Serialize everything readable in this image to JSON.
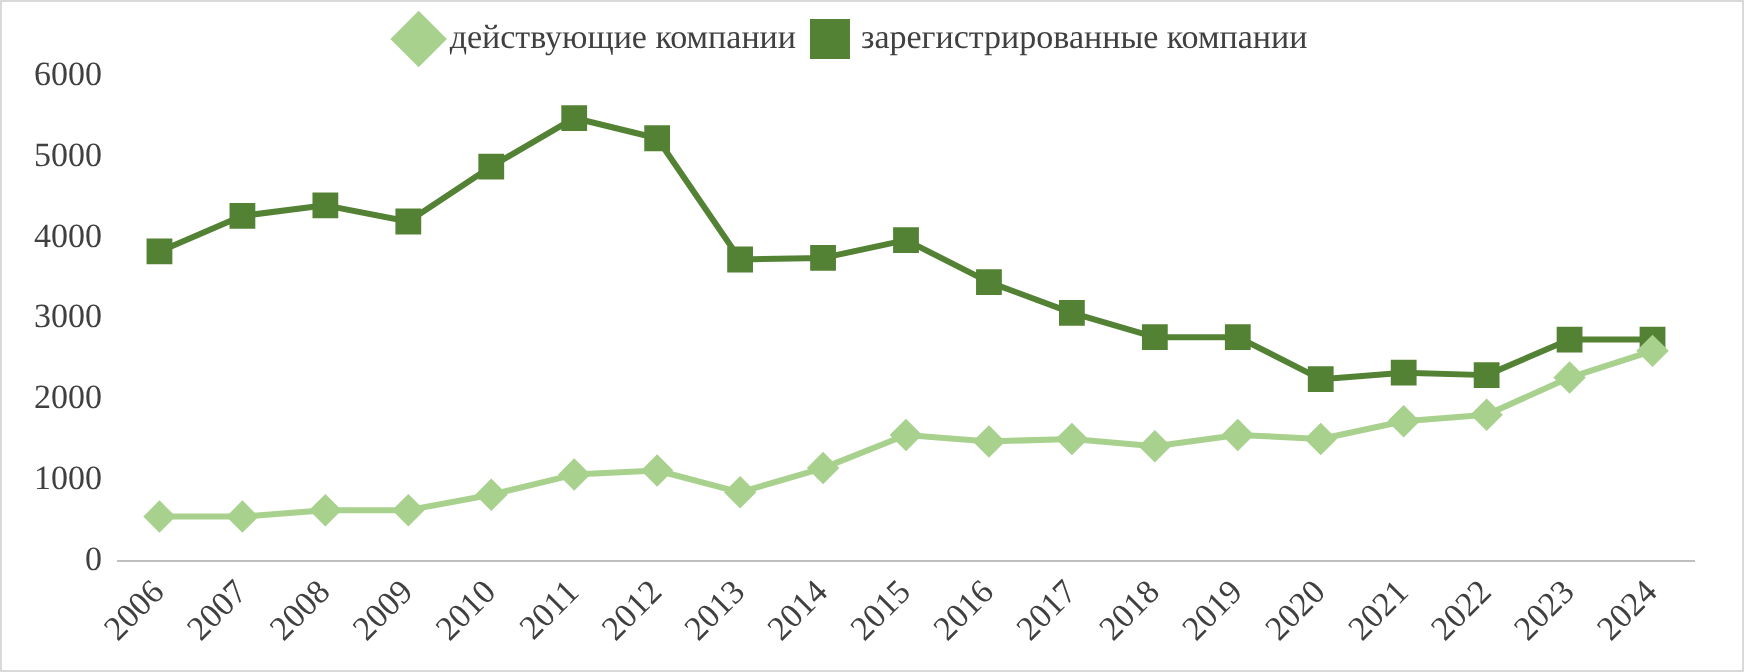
{
  "chart_data": {
    "type": "line",
    "categories": [
      "2006",
      "2007",
      "2008",
      "2009",
      "2010",
      "2011",
      "2012",
      "2013",
      "2014",
      "2015",
      "2016",
      "2017",
      "2018",
      "2019",
      "2020",
      "2021",
      "2022",
      "2023",
      "2024"
    ],
    "series": [
      {
        "name": "действующие компании",
        "color": "#a9d18e",
        "marker": "diamond",
        "values": [
          550,
          550,
          630,
          630,
          820,
          1070,
          1120,
          850,
          1150,
          1560,
          1480,
          1510,
          1420,
          1560,
          1510,
          1730,
          1810,
          2270,
          2600
        ]
      },
      {
        "name": "зарегистрированные компании",
        "color": "#548235",
        "marker": "square",
        "values": [
          3830,
          4270,
          4400,
          4200,
          4880,
          5480,
          5230,
          3730,
          3750,
          3970,
          3450,
          3070,
          2770,
          2770,
          2250,
          2330,
          2300,
          2740,
          2740
        ]
      }
    ],
    "ylim": [
      0,
      6000
    ],
    "yticks": [
      0,
      1000,
      2000,
      3000,
      4000,
      5000,
      6000
    ],
    "grid": false,
    "legend": "top",
    "line_style": "solid"
  }
}
